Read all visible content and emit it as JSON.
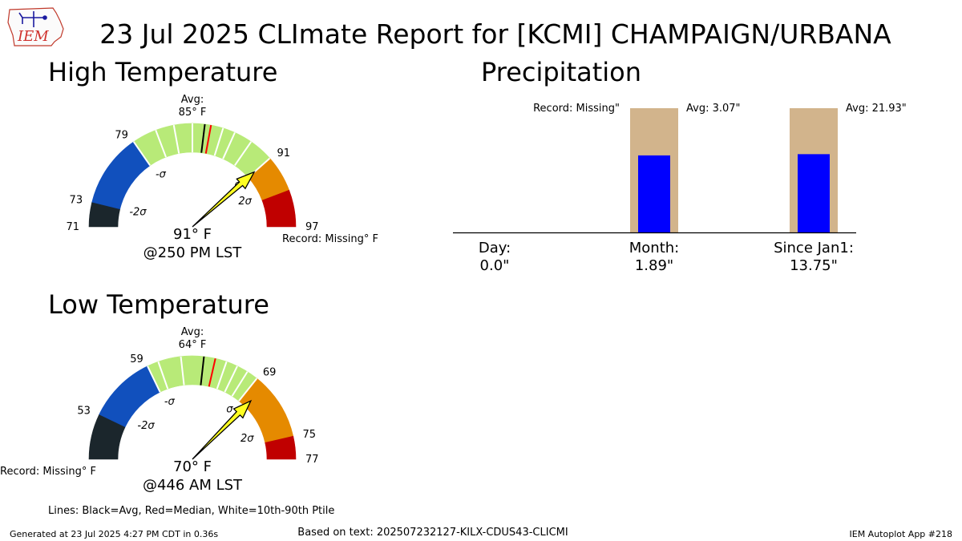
{
  "page": {
    "title": "23 Jul 2025 CLImate Report for [KCMI] CHAMPAIGN/URBANA",
    "logo_text": "IEM",
    "footer_left": "Generated at 23 Jul 2025 4:27 PM CDT in 0.36s",
    "footer_center": "Based on text: 202507232127-KILX-CDUS43-CLICMI",
    "footer_right": "IEM Autoplot App #218",
    "legend_note": "Lines: Black=Avg, Red=Median, White=10th-90th Ptile",
    "colors": {
      "below_2sigma": "#1b262c",
      "minus_sigma_band": "#1150bd",
      "normal_band": "#b8ea78",
      "plus_sigma_band": "#e58a00",
      "above_2sigma": "#c00000",
      "needle": "#ffff22",
      "median_line": "#ff0000",
      "precip_avg_bar": "#d2b48c",
      "precip_obs_bar": "#0000ff"
    }
  },
  "chart_data": [
    {
      "type": "gauge",
      "title": "High Temperature",
      "avg_label": "Avg:",
      "avg_value_label": "85 F",
      "unit_mark": "°",
      "observed": 91,
      "observed_label": "91° F",
      "time_label": "@250 PM LST",
      "record_label": "Record: Missing° F",
      "range": [
        71,
        97
      ],
      "avg": 85,
      "median": 85.5,
      "ticks": [
        {
          "value": 71,
          "label": "71"
        },
        {
          "value": 73,
          "label": "73"
        },
        {
          "value": 79,
          "label": "79"
        },
        {
          "value": 91,
          "label": "91"
        },
        {
          "value": 97,
          "label": "97"
        }
      ],
      "sigma_labels": [
        {
          "value": 73,
          "label": "-2σ"
        },
        {
          "value": 79,
          "label": "-σ"
        },
        {
          "value": 91,
          "label": "σ"
        },
        {
          "value": 93.5,
          "label": "2σ"
        }
      ],
      "bands": [
        {
          "from": 71,
          "to": 73,
          "color_key": "below_2sigma"
        },
        {
          "from": 73,
          "to": 79,
          "color_key": "minus_sigma_band"
        },
        {
          "from": 79,
          "to": 91,
          "color_key": "normal_band"
        },
        {
          "from": 91,
          "to": 94,
          "color_key": "plus_sigma_band"
        },
        {
          "from": 94,
          "to": 97,
          "color_key": "above_2sigma"
        }
      ],
      "percentile_lines": [
        79,
        81,
        82.5,
        84,
        86.5,
        87.5,
        89,
        91
      ]
    },
    {
      "type": "gauge",
      "title": "Low Temperature",
      "avg_label": "Avg:",
      "avg_value_label": "64 F",
      "unit_mark": "°",
      "observed": 70,
      "observed_label": "70° F",
      "time_label": "@446 AM LST",
      "record_label": "Record: Missing° F",
      "range": [
        49,
        77
      ],
      "avg": 64,
      "median": 65,
      "ticks": [
        {
          "value": 53,
          "label": "53"
        },
        {
          "value": 59,
          "label": "59"
        },
        {
          "value": 69,
          "label": "69"
        },
        {
          "value": 75,
          "label": "75"
        },
        {
          "value": 77,
          "label": "77"
        }
      ],
      "sigma_labels": [
        {
          "value": 54,
          "label": "-2σ"
        },
        {
          "value": 59,
          "label": "-σ"
        },
        {
          "value": 69,
          "label": "σ"
        },
        {
          "value": 74,
          "label": "2σ"
        }
      ],
      "bands": [
        {
          "from": 49,
          "to": 53,
          "color_key": "below_2sigma"
        },
        {
          "from": 53,
          "to": 59,
          "color_key": "minus_sigma_band"
        },
        {
          "from": 59,
          "to": 69,
          "color_key": "normal_band"
        },
        {
          "from": 69,
          "to": 70,
          "color_key": "plus_sigma_band"
        },
        {
          "from": 70,
          "to": 75,
          "color_key": "plus_sigma_band"
        },
        {
          "from": 75,
          "to": 77,
          "color_key": "above_2sigma"
        }
      ],
      "percentile_lines": [
        59,
        60,
        62,
        66,
        67,
        68,
        69
      ]
    },
    {
      "type": "bar",
      "title": "Precipitation",
      "categories": [
        "Day:",
        "Month:",
        "Since Jan1:"
      ],
      "observed_labels": [
        "0.0\"",
        "1.89\"",
        "13.75\""
      ],
      "observed": [
        0.0,
        1.89,
        13.75
      ],
      "normalized_observed": [
        0,
        0.62,
        0.63
      ],
      "avg_labels": [
        "Record: Missing\"",
        "Avg: 3.07\"",
        "Avg: 21.93\""
      ],
      "avg": [
        null,
        3.07,
        21.93
      ],
      "normalized_avg": [
        0,
        1.0,
        1.0
      ]
    }
  ]
}
